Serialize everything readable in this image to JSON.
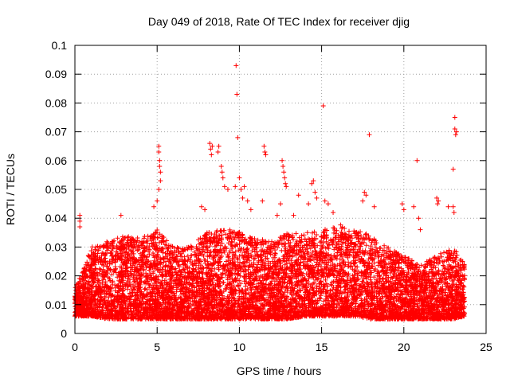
{
  "chart_data": {
    "type": "scatter",
    "title": "Day 049 of 2018, Rate Of TEC Index for receiver djig",
    "xlabel": "GPS time / hours",
    "ylabel": "ROTI / TECUs",
    "xlim": [
      0,
      25
    ],
    "ylim": [
      0,
      0.1
    ],
    "x_ticks": [
      "0",
      "5",
      "10",
      "15",
      "20",
      "25"
    ],
    "y_ticks": [
      "0",
      "0.01",
      "0.02",
      "0.03",
      "0.04",
      "0.05",
      "0.06",
      "0.07",
      "0.08",
      "0.09",
      "0.1"
    ],
    "grid": true,
    "marker": "+",
    "series_color": "#ff0000",
    "band_envelope": [
      {
        "x": 0.0,
        "low": 0.006,
        "high": 0.016
      },
      {
        "x": 0.5,
        "low": 0.006,
        "high": 0.022
      },
      {
        "x": 1.0,
        "low": 0.006,
        "high": 0.03
      },
      {
        "x": 2.0,
        "low": 0.005,
        "high": 0.032
      },
      {
        "x": 3.0,
        "low": 0.005,
        "high": 0.034
      },
      {
        "x": 4.0,
        "low": 0.005,
        "high": 0.033
      },
      {
        "x": 5.0,
        "low": 0.005,
        "high": 0.036
      },
      {
        "x": 6.0,
        "low": 0.005,
        "high": 0.03
      },
      {
        "x": 7.0,
        "low": 0.005,
        "high": 0.03
      },
      {
        "x": 8.0,
        "low": 0.005,
        "high": 0.035
      },
      {
        "x": 9.0,
        "low": 0.005,
        "high": 0.036
      },
      {
        "x": 10.0,
        "low": 0.005,
        "high": 0.036
      },
      {
        "x": 11.0,
        "low": 0.005,
        "high": 0.033
      },
      {
        "x": 12.0,
        "low": 0.005,
        "high": 0.032
      },
      {
        "x": 13.0,
        "low": 0.005,
        "high": 0.035
      },
      {
        "x": 14.0,
        "low": 0.006,
        "high": 0.035
      },
      {
        "x": 15.0,
        "low": 0.006,
        "high": 0.036
      },
      {
        "x": 16.0,
        "low": 0.006,
        "high": 0.038
      },
      {
        "x": 17.0,
        "low": 0.006,
        "high": 0.036
      },
      {
        "x": 18.0,
        "low": 0.005,
        "high": 0.034
      },
      {
        "x": 19.0,
        "low": 0.005,
        "high": 0.03
      },
      {
        "x": 20.0,
        "low": 0.005,
        "high": 0.027
      },
      {
        "x": 21.0,
        "low": 0.005,
        "high": 0.024
      },
      {
        "x": 22.0,
        "low": 0.005,
        "high": 0.027
      },
      {
        "x": 23.0,
        "low": 0.005,
        "high": 0.03
      },
      {
        "x": 23.7,
        "low": 0.006,
        "high": 0.024
      }
    ],
    "notable_points": [
      {
        "x": 0.3,
        "y": 0.041
      },
      {
        "x": 0.3,
        "y": 0.039
      },
      {
        "x": 0.3,
        "y": 0.037
      },
      {
        "x": 2.8,
        "y": 0.041
      },
      {
        "x": 4.8,
        "y": 0.044
      },
      {
        "x": 5.0,
        "y": 0.046
      },
      {
        "x": 5.1,
        "y": 0.065
      },
      {
        "x": 5.1,
        "y": 0.063
      },
      {
        "x": 5.15,
        "y": 0.06
      },
      {
        "x": 5.15,
        "y": 0.058
      },
      {
        "x": 5.2,
        "y": 0.056
      },
      {
        "x": 5.2,
        "y": 0.053
      },
      {
        "x": 5.1,
        "y": 0.05
      },
      {
        "x": 7.7,
        "y": 0.044
      },
      {
        "x": 7.9,
        "y": 0.043
      },
      {
        "x": 8.2,
        "y": 0.066
      },
      {
        "x": 8.25,
        "y": 0.064
      },
      {
        "x": 8.3,
        "y": 0.062
      },
      {
        "x": 8.35,
        "y": 0.065
      },
      {
        "x": 8.7,
        "y": 0.063
      },
      {
        "x": 8.75,
        "y": 0.065
      },
      {
        "x": 8.9,
        "y": 0.058
      },
      {
        "x": 8.95,
        "y": 0.056
      },
      {
        "x": 9.0,
        "y": 0.054
      },
      {
        "x": 9.1,
        "y": 0.051
      },
      {
        "x": 9.3,
        "y": 0.05
      },
      {
        "x": 9.8,
        "y": 0.093
      },
      {
        "x": 9.85,
        "y": 0.083
      },
      {
        "x": 9.9,
        "y": 0.068
      },
      {
        "x": 9.75,
        "y": 0.051
      },
      {
        "x": 10.0,
        "y": 0.054
      },
      {
        "x": 10.1,
        "y": 0.05
      },
      {
        "x": 10.2,
        "y": 0.047
      },
      {
        "x": 10.3,
        "y": 0.051
      },
      {
        "x": 10.5,
        "y": 0.046
      },
      {
        "x": 10.7,
        "y": 0.043
      },
      {
        "x": 11.5,
        "y": 0.065
      },
      {
        "x": 11.55,
        "y": 0.063
      },
      {
        "x": 11.6,
        "y": 0.062
      },
      {
        "x": 11.4,
        "y": 0.046
      },
      {
        "x": 12.3,
        "y": 0.041
      },
      {
        "x": 12.5,
        "y": 0.045
      },
      {
        "x": 12.6,
        "y": 0.06
      },
      {
        "x": 12.65,
        "y": 0.058
      },
      {
        "x": 12.7,
        "y": 0.056
      },
      {
        "x": 12.75,
        "y": 0.054
      },
      {
        "x": 12.8,
        "y": 0.052
      },
      {
        "x": 12.85,
        "y": 0.051
      },
      {
        "x": 13.3,
        "y": 0.041
      },
      {
        "x": 13.6,
        "y": 0.048
      },
      {
        "x": 14.2,
        "y": 0.045
      },
      {
        "x": 14.4,
        "y": 0.052
      },
      {
        "x": 14.5,
        "y": 0.053
      },
      {
        "x": 14.6,
        "y": 0.049
      },
      {
        "x": 14.7,
        "y": 0.047
      },
      {
        "x": 15.1,
        "y": 0.079
      },
      {
        "x": 15.2,
        "y": 0.046
      },
      {
        "x": 15.4,
        "y": 0.045
      },
      {
        "x": 15.7,
        "y": 0.042
      },
      {
        "x": 17.6,
        "y": 0.049
      },
      {
        "x": 17.7,
        "y": 0.048
      },
      {
        "x": 17.5,
        "y": 0.046
      },
      {
        "x": 17.9,
        "y": 0.069
      },
      {
        "x": 18.2,
        "y": 0.044
      },
      {
        "x": 19.9,
        "y": 0.045
      },
      {
        "x": 20.0,
        "y": 0.043
      },
      {
        "x": 20.6,
        "y": 0.044
      },
      {
        "x": 20.8,
        "y": 0.06
      },
      {
        "x": 20.9,
        "y": 0.04
      },
      {
        "x": 21.0,
        "y": 0.036
      },
      {
        "x": 22.0,
        "y": 0.047
      },
      {
        "x": 22.05,
        "y": 0.045
      },
      {
        "x": 22.1,
        "y": 0.046
      },
      {
        "x": 22.7,
        "y": 0.044
      },
      {
        "x": 23.0,
        "y": 0.057
      },
      {
        "x": 23.1,
        "y": 0.075
      },
      {
        "x": 23.1,
        "y": 0.071
      },
      {
        "x": 23.15,
        "y": 0.069
      },
      {
        "x": 23.2,
        "y": 0.07
      },
      {
        "x": 23.0,
        "y": 0.044
      },
      {
        "x": 23.05,
        "y": 0.042
      }
    ],
    "n_background_points": 9000
  }
}
